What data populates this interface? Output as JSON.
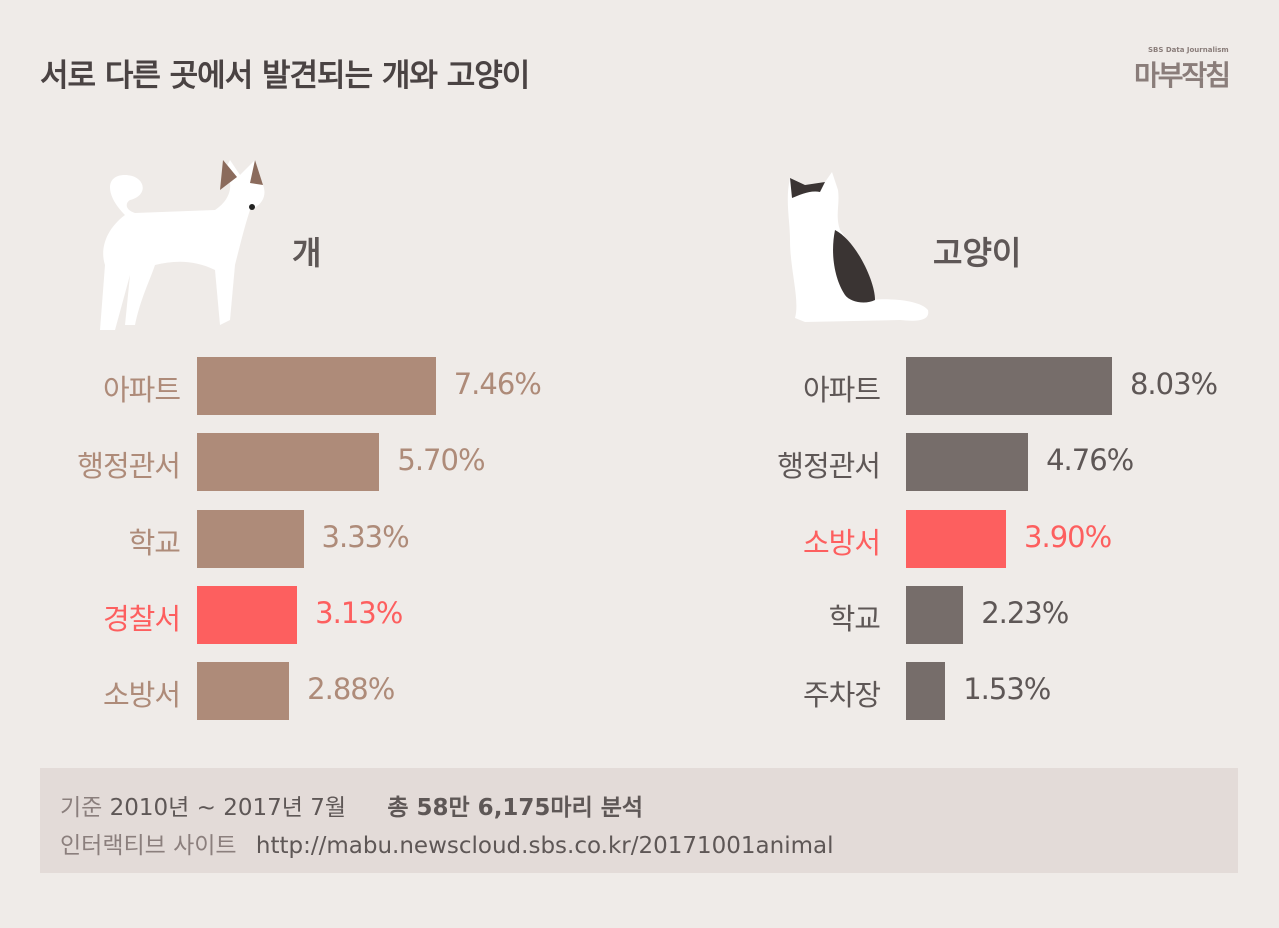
{
  "title": "서로 다른 곳에서 발견되는 개와 고양이",
  "logo": {
    "sub": "SBS Data Journalism",
    "main": "마부작침"
  },
  "colors": {
    "background": "#efebe8",
    "dog_bar": "#ae8b79",
    "cat_bar": "#766d6a",
    "highlight": "#fd5f5f",
    "footer_box": "#e3dbd8"
  },
  "chart_data": [
    {
      "type": "bar",
      "orientation": "horizontal",
      "title": "개",
      "categories": [
        "아파트",
        "행정관서",
        "학교",
        "경찰서",
        "소방서"
      ],
      "values": [
        7.46,
        5.7,
        3.33,
        3.13,
        2.88
      ],
      "value_labels": [
        "7.46%",
        "5.70%",
        "3.33%",
        "3.13%",
        "2.88%"
      ],
      "highlight": [
        "경찰서"
      ],
      "unit": "%"
    },
    {
      "type": "bar",
      "orientation": "horizontal",
      "title": "고양이",
      "categories": [
        "아파트",
        "행정관서",
        "소방서",
        "학교",
        "주차장"
      ],
      "values": [
        8.03,
        4.76,
        3.9,
        2.23,
        1.53
      ],
      "value_labels": [
        "8.03%",
        "4.76%",
        "3.90%",
        "2.23%",
        "1.53%"
      ],
      "highlight": [
        "소방서"
      ],
      "unit": "%"
    }
  ],
  "footer": {
    "basis_label": "기준",
    "basis_period": "2010년 ~ 2017년 7월",
    "total": "총 58만 6,175마리 분석",
    "site_label": "인터랙티브 사이트",
    "site_url": "http://mabu.newscloud.sbs.co.kr/20171001animal"
  }
}
